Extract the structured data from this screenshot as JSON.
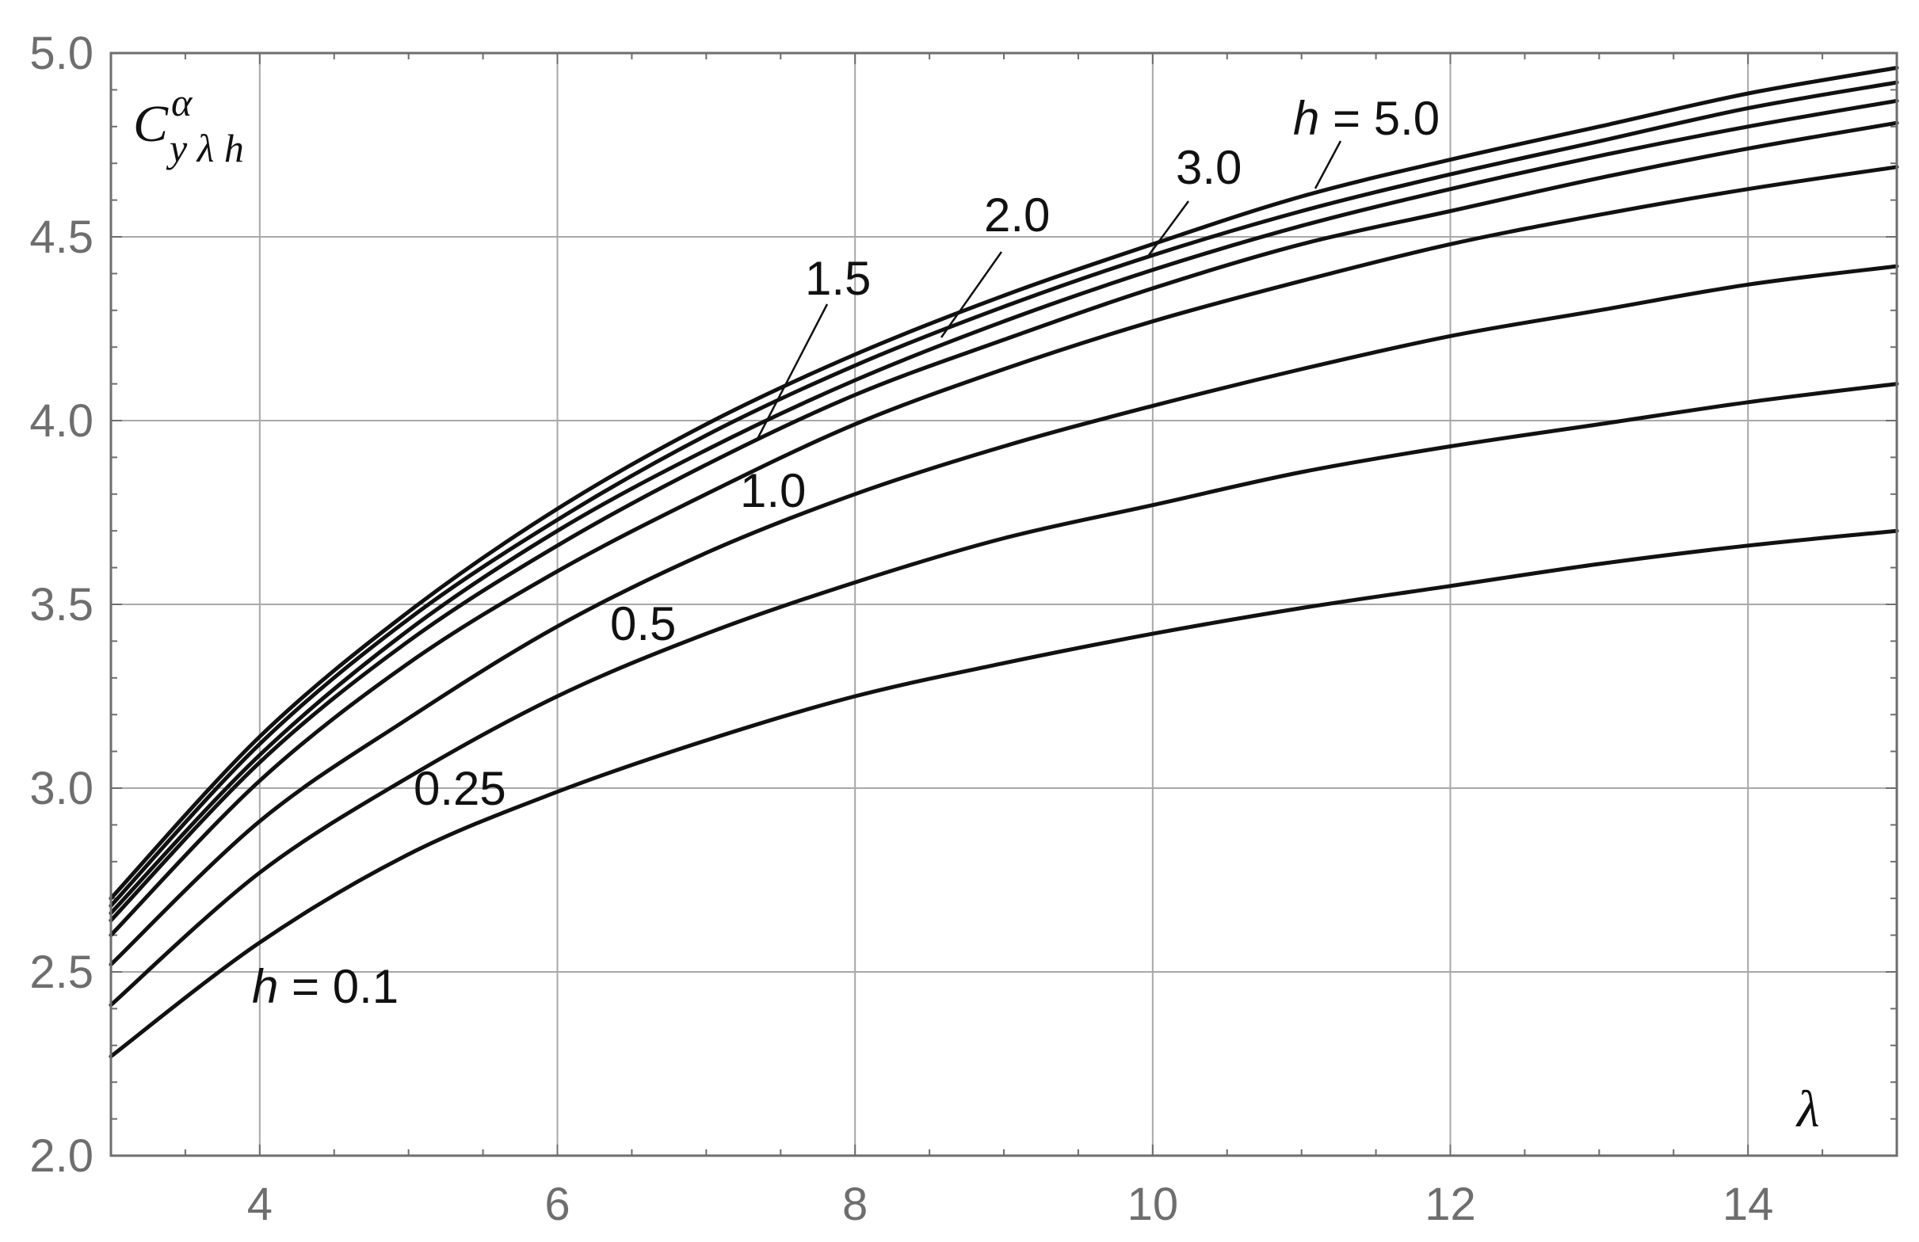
{
  "chart_data": {
    "type": "line",
    "title": "",
    "xlabel": "λ",
    "ylabel": "C",
    "ylabel_sup": "α",
    "ylabel_sub": "y λ h",
    "xlim": [
      3,
      15
    ],
    "ylim": [
      2.0,
      5.0
    ],
    "grid": true,
    "x_ticks": [
      4,
      6,
      8,
      10,
      12,
      14
    ],
    "x_tick_labels": [
      "4",
      "6",
      "8",
      "10",
      "12",
      "14"
    ],
    "y_ticks": [
      2.0,
      2.5,
      3.0,
      3.5,
      4.0,
      4.5,
      5.0
    ],
    "y_tick_labels": [
      "2.0",
      "2.5",
      "3.0",
      "3.5",
      "4.0",
      "4.5",
      "5.0"
    ],
    "x": [
      3,
      4,
      5,
      6,
      7,
      8,
      9,
      10,
      11,
      12,
      13,
      14,
      15
    ],
    "series": [
      {
        "name": "h = 0.1",
        "label_text": "0.1",
        "values": [
          2.27,
          2.58,
          2.82,
          2.99,
          3.13,
          3.25,
          3.34,
          3.42,
          3.49,
          3.55,
          3.61,
          3.66,
          3.7
        ]
      },
      {
        "name": "0.25",
        "label_text": "0.25",
        "values": [
          2.41,
          2.77,
          3.03,
          3.25,
          3.42,
          3.56,
          3.68,
          3.77,
          3.86,
          3.93,
          3.99,
          4.05,
          4.1
        ]
      },
      {
        "name": "0.5",
        "label_text": "0.5",
        "values": [
          2.52,
          2.91,
          3.19,
          3.44,
          3.64,
          3.8,
          3.93,
          4.04,
          4.14,
          4.23,
          4.3,
          4.37,
          4.42
        ]
      },
      {
        "name": "1.0",
        "label_text": "1.0",
        "values": [
          2.6,
          3.02,
          3.34,
          3.59,
          3.8,
          3.99,
          4.14,
          4.27,
          4.38,
          4.48,
          4.56,
          4.63,
          4.69
        ]
      },
      {
        "name": "1.5",
        "label_text": "1.5",
        "values": [
          2.64,
          3.07,
          3.4,
          3.66,
          3.88,
          4.07,
          4.22,
          4.36,
          4.48,
          4.57,
          4.66,
          4.74,
          4.81
        ]
      },
      {
        "name": "2.0",
        "label_text": "2.0",
        "values": [
          2.66,
          3.09,
          3.43,
          3.7,
          3.92,
          4.11,
          4.27,
          4.41,
          4.53,
          4.63,
          4.72,
          4.8,
          4.87
        ]
      },
      {
        "name": "3.0",
        "label_text": "3.0",
        "values": [
          2.68,
          3.12,
          3.46,
          3.73,
          3.96,
          4.15,
          4.31,
          4.45,
          4.57,
          4.67,
          4.76,
          4.85,
          4.92
        ]
      },
      {
        "name": "h = 5.0",
        "label_text": "5.0",
        "values": [
          2.7,
          3.14,
          3.48,
          3.76,
          3.99,
          4.18,
          4.34,
          4.48,
          4.61,
          4.71,
          4.8,
          4.89,
          4.96
        ]
      }
    ],
    "annotations": {
      "h_prefix": "h",
      "equals": " = ",
      "label_h01": "0.1",
      "label_025": "0.25",
      "label_05": "0.5",
      "label_10": "1.0",
      "label_15": "1.5",
      "label_20": "2.0",
      "label_30": "3.0",
      "label_50": "5.0"
    }
  }
}
